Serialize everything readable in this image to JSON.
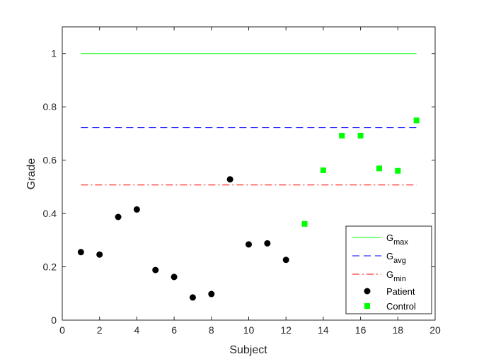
{
  "chart_data": {
    "type": "scatter",
    "title": "",
    "xlabel": "Subject",
    "ylabel": "Grade",
    "xlim": [
      0,
      20
    ],
    "ylim": [
      0,
      1.1
    ],
    "xticks": [
      "0",
      "2",
      "4",
      "6",
      "8",
      "10",
      "12",
      "14",
      "16",
      "18",
      "20"
    ],
    "yticks": [
      "0",
      "0.2",
      "0.4",
      "0.6",
      "0.8",
      "1"
    ],
    "grid": false,
    "legend_position": "bottom-right",
    "lines": [
      {
        "name": "G",
        "sub": "max",
        "x": [
          1,
          19
        ],
        "y": [
          1.0,
          1.0
        ],
        "color": "#00ff00",
        "style": "solid"
      },
      {
        "name": "G",
        "sub": "avg",
        "x": [
          1,
          19
        ],
        "y": [
          0.722,
          0.722
        ],
        "color": "#0000ff",
        "style": "dashed"
      },
      {
        "name": "G",
        "sub": "min",
        "x": [
          1,
          19
        ],
        "y": [
          0.507,
          0.507
        ],
        "color": "#ff0000",
        "style": "dashdot"
      }
    ],
    "series": [
      {
        "name": "Patient",
        "marker": "circle",
        "color": "#000000",
        "x": [
          1,
          2,
          3,
          4,
          5,
          6,
          7,
          8,
          9,
          10,
          11,
          12
        ],
        "y": [
          0.255,
          0.246,
          0.387,
          0.415,
          0.188,
          0.162,
          0.085,
          0.098,
          0.528,
          0.284,
          0.288,
          0.226
        ]
      },
      {
        "name": "Control",
        "marker": "square",
        "color": "#00ff00",
        "x": [
          13,
          14,
          15,
          16,
          17,
          18,
          19
        ],
        "y": [
          0.361,
          0.562,
          0.692,
          0.692,
          0.569,
          0.56,
          0.749
        ]
      }
    ]
  }
}
